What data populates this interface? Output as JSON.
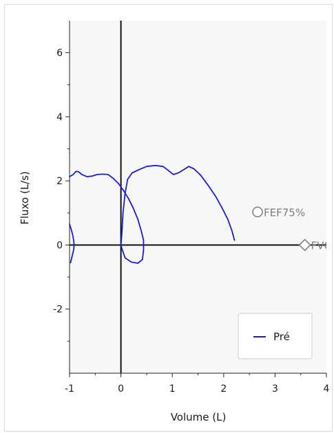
{
  "chart_data": {
    "type": "line",
    "xlabel": "Volume (L)",
    "ylabel": "Fluxo (L/s)",
    "xlim": [
      -1,
      4
    ],
    "ylim": [
      -4,
      7
    ],
    "x_ticks": [
      -1,
      0,
      1,
      2,
      3,
      4
    ],
    "x_tick_labels": [
      "-1",
      "0",
      "1",
      "2",
      "3",
      "4"
    ],
    "y_ticks": [
      -2,
      0,
      2,
      4,
      6
    ],
    "y_tick_labels": [
      "-2",
      "0",
      "2",
      "4",
      "6"
    ],
    "legend": {
      "position": "bottom-right",
      "entries": [
        "Pré"
      ]
    },
    "series": [
      {
        "name": "Pré",
        "color": "#1a1adc",
        "segments": [
          [
            [
              -1.0,
              0.65
            ],
            [
              -0.97,
              0.5
            ],
            [
              -0.94,
              0.32
            ],
            [
              -0.92,
              0.14
            ],
            [
              -0.91,
              0.0
            ],
            [
              -0.92,
              -0.15
            ],
            [
              -0.95,
              -0.35
            ],
            [
              -0.98,
              -0.55
            ]
          ],
          [
            [
              -1.0,
              2.13
            ],
            [
              -0.93,
              2.2
            ],
            [
              -0.87,
              2.3
            ],
            [
              -0.82,
              2.28
            ],
            [
              -0.76,
              2.2
            ],
            [
              -0.66,
              2.13
            ],
            [
              -0.56,
              2.15
            ],
            [
              -0.46,
              2.2
            ],
            [
              -0.36,
              2.21
            ],
            [
              -0.25,
              2.2
            ],
            [
              -0.15,
              2.08
            ],
            [
              -0.05,
              1.92
            ],
            [
              0.05,
              1.7
            ],
            [
              0.15,
              1.44
            ],
            [
              0.24,
              1.15
            ],
            [
              0.33,
              0.8
            ],
            [
              0.4,
              0.42
            ],
            [
              0.44,
              0.15
            ],
            [
              0.44,
              -0.15
            ],
            [
              0.42,
              -0.45
            ],
            [
              0.33,
              -0.57
            ],
            [
              0.2,
              -0.53
            ],
            [
              0.08,
              -0.4
            ],
            [
              0.02,
              -0.12
            ],
            [
              0.0,
              0.0
            ],
            [
              0.02,
              0.4
            ],
            [
              0.04,
              1.0
            ],
            [
              0.08,
              1.6
            ],
            [
              0.13,
              2.05
            ],
            [
              0.22,
              2.25
            ],
            [
              0.35,
              2.35
            ],
            [
              0.5,
              2.45
            ],
            [
              0.67,
              2.48
            ],
            [
              0.82,
              2.45
            ],
            [
              0.92,
              2.33
            ],
            [
              1.02,
              2.2
            ],
            [
              1.12,
              2.25
            ],
            [
              1.22,
              2.35
            ],
            [
              1.32,
              2.45
            ],
            [
              1.42,
              2.38
            ],
            [
              1.55,
              2.18
            ],
            [
              1.7,
              1.86
            ],
            [
              1.85,
              1.5
            ],
            [
              1.97,
              1.15
            ],
            [
              2.08,
              0.8
            ],
            [
              2.16,
              0.45
            ],
            [
              2.21,
              0.15
            ]
          ]
        ]
      }
    ],
    "annotations": [
      {
        "label": "FEF75%",
        "marker": "circle",
        "x": 2.66,
        "y": 1.03,
        "color": "#7a7a7a"
      },
      {
        "label": "FVC",
        "marker": "diamond",
        "x": 3.58,
        "y": 0.0,
        "color": "#7a7a7a"
      }
    ]
  }
}
